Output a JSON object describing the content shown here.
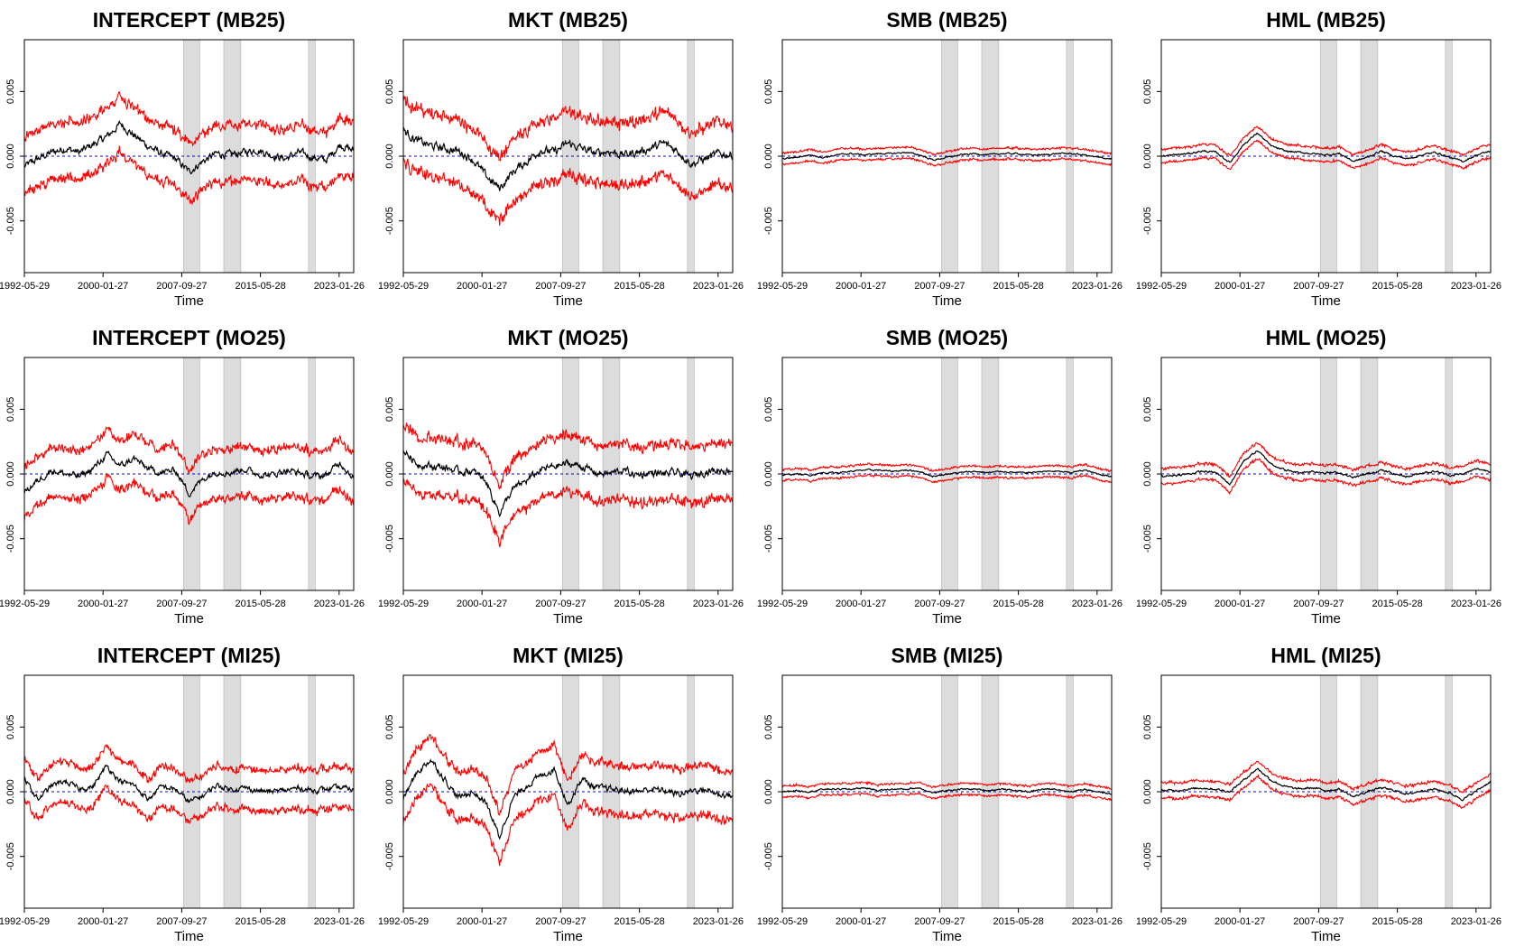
{
  "figure": {
    "xlabel": "Time",
    "x_tick_labels": [
      "1992-05-29",
      "2000-01-27",
      "2007-09-27",
      "2015-05-28",
      "2023-01-26"
    ],
    "y_tick_labels": [
      "-0.005",
      "0.000",
      "0.005"
    ]
  },
  "chart_data": [
    {
      "type": "line",
      "title": "INTERCEPT (MB25)",
      "series": [
        {
          "values": [
            -0.0008,
            -0.0002,
            0.0003,
            0.0006,
            0.0003,
            0.0009,
            0.0015,
            0.0025,
            0.0016,
            0.0008,
            0.0002,
            -0.0002,
            -0.0012,
            -0.0004,
            0.0002,
            0.0001,
            0.0003,
            0.0005,
            0.0001,
            -0.0002,
            0.0003,
            -0.0001,
            -0.0003,
            0.0009,
            0.0004
          ],
          "band": 0.0025
        }
      ]
    },
    {
      "type": "line",
      "title": "MKT (MB25)",
      "series": [
        {
          "values": [
            0.002,
            0.0012,
            0.0008,
            0.0006,
            0.0004,
            -0.0002,
            -0.0015,
            -0.0025,
            -0.0012,
            -0.0004,
            0.0005,
            0.0003,
            0.001,
            0.0006,
            0.0002,
            0.0004,
            0.0001,
            0.0003,
            0.0006,
            0.001,
            0.0004,
            -0.0006,
            -0.0002,
            0.0002,
            0.0001
          ],
          "band": 0.0028
        }
      ]
    },
    {
      "type": "line",
      "title": "SMB (MB25)",
      "series": [
        {
          "values": [
            -0.0002,
            -0.0001,
            0.0001,
            -0.0001,
            0.0001,
            0.0002,
            0.0001,
            0.0002,
            0.0002,
            0.0003,
            0.0001,
            -0.0003,
            -0.0001,
            0.0001,
            0.0002,
            0.0001,
            0.0002,
            0.0002,
            0.0001,
            0.0001,
            0.0002,
            0.0002,
            0.0001,
            -0.0001,
            -0.0002
          ],
          "band": 0.0005
        }
      ]
    },
    {
      "type": "line",
      "title": "HML (MB25)",
      "series": [
        {
          "values": [
            0.0,
            0.0001,
            0.0002,
            0.0004,
            0.0003,
            -0.0005,
            0.0009,
            0.0018,
            0.0008,
            0.0004,
            0.0003,
            0.0002,
            0.0001,
            0.0002,
            -0.0004,
            -0.0001,
            0.0004,
            0.0,
            -0.0002,
            0.0001,
            0.0003,
            -0.0001,
            -0.0004,
            0.0001,
            0.0004
          ],
          "band": 0.0006
        }
      ]
    },
    {
      "type": "line",
      "title": "INTERCEPT (MO25)",
      "series": [
        {
          "values": [
            -0.0014,
            -0.0005,
            0.0003,
            0.0,
            -0.0002,
            0.0004,
            0.0015,
            0.0006,
            0.0012,
            0.0004,
            0.0001,
            0.0003,
            -0.0015,
            -0.0004,
            0.0002,
            0.0001,
            0.0004,
            0.0,
            -0.0001,
            0.0003,
            0.0001,
            -0.0002,
            -0.0001,
            0.0009,
            -0.0003
          ],
          "band": 0.0022
        }
      ]
    },
    {
      "type": "line",
      "title": "MKT (MO25)",
      "series": [
        {
          "values": [
            0.0018,
            0.0008,
            0.0006,
            0.0005,
            0.0002,
            0.0002,
            -0.0005,
            -0.003,
            -0.0012,
            -0.0005,
            0.0003,
            0.0006,
            0.0008,
            0.0006,
            0.0001,
            0.0,
            0.0003,
            -0.0001,
            0.0001,
            0.0,
            0.0001,
            -0.0002,
            0.0002,
            0.0003,
            0.0003
          ],
          "band": 0.0025
        }
      ]
    },
    {
      "type": "line",
      "title": "SMB (MO25)",
      "series": [
        {
          "values": [
            -0.0001,
            0.0,
            -0.0001,
            0.0001,
            0.0001,
            0.0002,
            0.0003,
            0.0003,
            0.0002,
            0.0003,
            0.0002,
            -0.0002,
            0.0,
            0.0001,
            0.0002,
            0.0001,
            0.0002,
            0.0001,
            0.0001,
            0.0002,
            0.0002,
            0.0001,
            0.0003,
            0.0,
            -0.0002
          ],
          "band": 0.0005
        }
      ]
    },
    {
      "type": "line",
      "title": "HML (MO25)",
      "series": [
        {
          "values": [
            -0.0002,
            -0.0001,
            0.0,
            0.0002,
            0.0001,
            -0.0008,
            0.001,
            0.0018,
            0.0008,
            0.0003,
            0.0001,
            0.0002,
            0.0001,
            0.0001,
            -0.0003,
            0.0,
            0.0003,
            0.0,
            -0.0002,
            0.0001,
            0.0002,
            -0.0001,
            0.0,
            0.0004,
            0.0002
          ],
          "band": 0.0007
        }
      ]
    },
    {
      "type": "line",
      "title": "INTERCEPT (MI25)",
      "series": [
        {
          "values": [
            0.001,
            -0.0006,
            0.0005,
            0.0008,
            0.0002,
            0.0004,
            0.002,
            0.0008,
            0.0005,
            -0.0006,
            0.0004,
            0.0002,
            -0.0008,
            -0.0003,
            0.0005,
            0.0002,
            0.0003,
            0.0001,
            0.0,
            0.0001,
            0.0003,
            0.0001,
            0.0002,
            0.0003,
            0.0002
          ],
          "band": 0.0018
        }
      ]
    },
    {
      "type": "line",
      "title": "MKT (MI25)",
      "series": [
        {
          "values": [
            -0.0005,
            0.0015,
            0.0025,
            0.001,
            -0.0005,
            0.0,
            -0.0008,
            -0.0035,
            -0.0005,
            0.0005,
            0.0012,
            0.0018,
            -0.001,
            0.001,
            0.0003,
            0.0002,
            0.0001,
            0.0,
            0.0002,
            0.0001,
            -0.0002,
            0.0001,
            0.0002,
            -0.0002,
            -0.0003
          ],
          "band": 0.0022
        }
      ]
    },
    {
      "type": "line",
      "title": "SMB (MI25)",
      "series": [
        {
          "values": [
            0.0,
            0.0001,
            0.0,
            0.0002,
            0.0002,
            0.0002,
            0.0003,
            0.0001,
            0.0002,
            0.0002,
            0.0003,
            -0.0001,
            0.0001,
            0.0002,
            0.0002,
            0.0001,
            0.0002,
            0.0001,
            0.0,
            0.0002,
            0.0002,
            0.0,
            0.0002,
            0.0,
            -0.0002
          ],
          "band": 0.0005
        }
      ]
    },
    {
      "type": "line",
      "title": "HML (MI25)",
      "series": [
        {
          "values": [
            0.0001,
            0.0001,
            0.0002,
            0.0003,
            0.0002,
            0.0,
            0.0009,
            0.0018,
            0.0009,
            0.0004,
            0.0002,
            0.0003,
            0.0001,
            0.0002,
            -0.0004,
            0.0,
            0.0003,
            0.0001,
            -0.0002,
            0.0001,
            0.0002,
            -0.0001,
            -0.0006,
            0.0001,
            0.0008
          ],
          "band": 0.0007
        }
      ]
    }
  ],
  "style": {
    "estimate_color": "#000000",
    "band_color": "#ff0000",
    "zero_line_color": "#0000ff",
    "shade_color": "#dcdcdc",
    "ylim": [
      -0.009,
      0.009
    ],
    "recession_periods": [
      [
        "2007-12-01",
        "2009-06-30"
      ],
      [
        "2011-11-01",
        "2013-06-30"
      ],
      [
        "2020-02-01",
        "2020-09-30"
      ]
    ]
  }
}
